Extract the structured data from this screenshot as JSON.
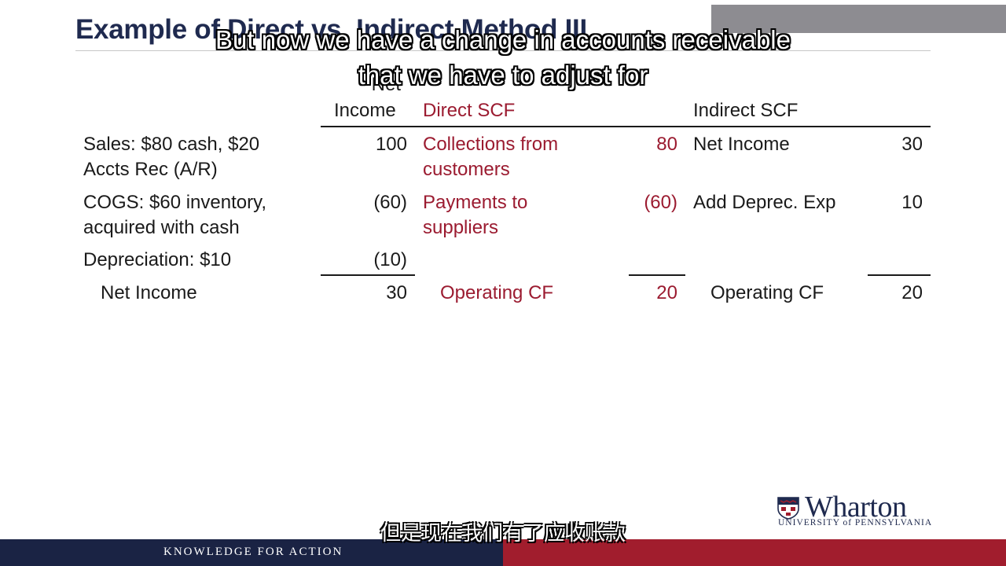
{
  "slide": {
    "title": "Example of Direct vs. Indirect Method III"
  },
  "headers": {
    "net_income_line1": "Net",
    "net_income_line2": "Income",
    "direct": "Direct SCF",
    "indirect": "Indirect SCF"
  },
  "rows": [
    {
      "desc_line1": "Sales: $80 cash, $20",
      "desc_line2": "Accts Rec (A/R)",
      "net_income": "100",
      "direct_label_line1": "Collections from",
      "direct_label_line2": "customers",
      "direct_value": "80",
      "indirect_label": "Net Income",
      "indirect_value": "30"
    },
    {
      "desc_line1": "COGS: $60 inventory,",
      "desc_line2": "acquired with cash",
      "net_income": "(60)",
      "direct_label_line1": "Payments to",
      "direct_label_line2": "suppliers",
      "direct_value": "(60)",
      "indirect_label": "Add Deprec. Exp",
      "indirect_value": "10"
    },
    {
      "desc_line1": "Depreciation: $10",
      "net_income": "(10)"
    }
  ],
  "totals": {
    "net_income_label": "Net Income",
    "net_income_value": "30",
    "direct_label": "Operating CF",
    "direct_value": "20",
    "indirect_label": "Operating CF",
    "indirect_value": "20"
  },
  "subtitles": {
    "english": "But now we have a change in accounts receivable that we have to adjust for",
    "chinese": "但是现在我们有了应收账款"
  },
  "footer": {
    "tagline": "KNOWLEDGE FOR ACTION"
  },
  "logo": {
    "wordmark": "Wharton",
    "university": "UNIVERSITY of PENNSYLVANIA",
    "icon": "penn-shield-icon"
  },
  "colors": {
    "title_navy": "#1f2a4f",
    "direct_red": "#9b1b30",
    "footer_navy": "#1a2344",
    "footer_red": "#a11d2d"
  }
}
